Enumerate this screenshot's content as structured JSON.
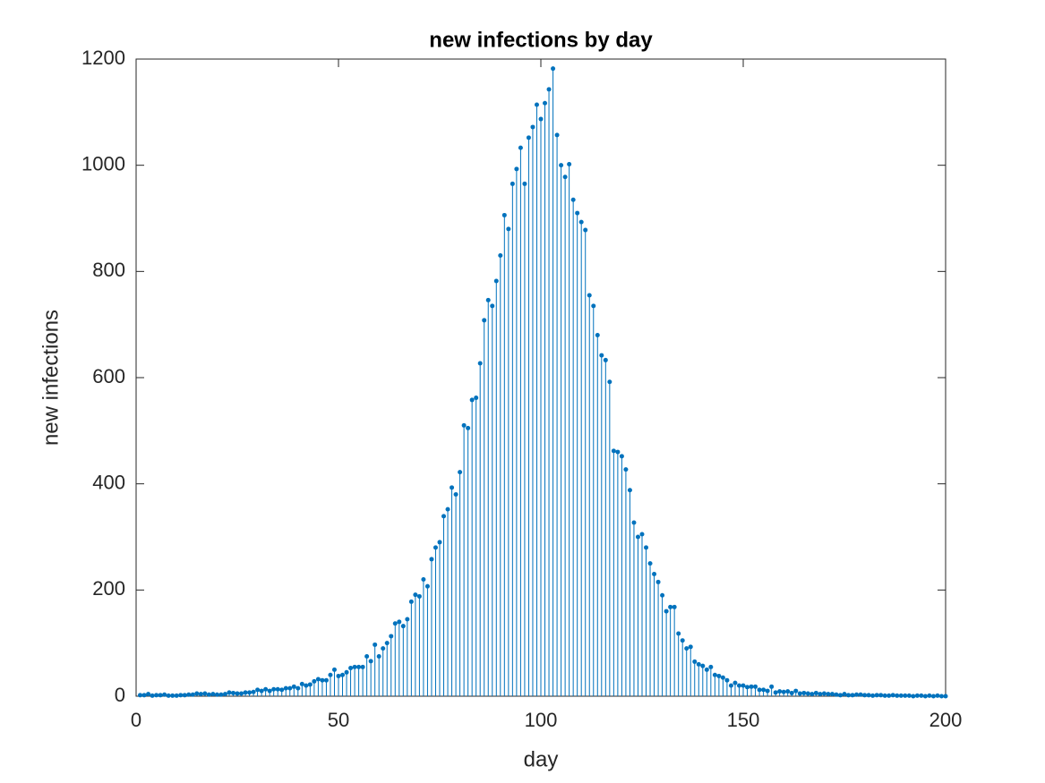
{
  "chart_data": {
    "type": "stem",
    "title": "new infections by day",
    "xlabel": "day",
    "ylabel": "new infections",
    "color": "#0072bd",
    "xlim": [
      0,
      200
    ],
    "xticks": [
      0,
      50,
      100,
      150,
      200
    ],
    "ylim": [
      0,
      1200
    ],
    "yticks": [
      0,
      200,
      400,
      600,
      800,
      1000,
      1200
    ],
    "x": [
      1,
      2,
      3,
      4,
      5,
      6,
      7,
      8,
      9,
      10,
      11,
      12,
      13,
      14,
      15,
      16,
      17,
      18,
      19,
      20,
      21,
      22,
      23,
      24,
      25,
      26,
      27,
      28,
      29,
      30,
      31,
      32,
      33,
      34,
      35,
      36,
      37,
      38,
      39,
      40,
      41,
      42,
      43,
      44,
      45,
      46,
      47,
      48,
      49,
      50,
      51,
      52,
      53,
      54,
      55,
      56,
      57,
      58,
      59,
      60,
      61,
      62,
      63,
      64,
      65,
      66,
      67,
      68,
      69,
      70,
      71,
      72,
      73,
      74,
      75,
      76,
      77,
      78,
      79,
      80,
      81,
      82,
      83,
      84,
      85,
      86,
      87,
      88,
      89,
      90,
      91,
      92,
      93,
      94,
      95,
      96,
      97,
      98,
      99,
      100,
      101,
      102,
      103,
      104,
      105,
      106,
      107,
      108,
      109,
      110,
      111,
      112,
      113,
      114,
      115,
      116,
      117,
      118,
      119,
      120,
      121,
      122,
      123,
      124,
      125,
      126,
      127,
      128,
      129,
      130,
      131,
      132,
      133,
      134,
      135,
      136,
      137,
      138,
      139,
      140,
      141,
      142,
      143,
      144,
      145,
      146,
      147,
      148,
      149,
      150,
      151,
      152,
      153,
      154,
      155,
      156,
      157,
      158,
      159,
      160,
      161,
      162,
      163,
      164,
      165,
      166,
      167,
      168,
      169,
      170,
      171,
      172,
      173,
      174,
      175,
      176,
      177,
      178,
      179,
      180,
      181,
      182,
      183,
      184,
      185,
      186,
      187,
      188,
      189,
      190,
      191,
      192,
      193,
      194,
      195,
      196,
      197,
      198,
      199,
      200
    ],
    "values": [
      2,
      2,
      4,
      1,
      2,
      2,
      3,
      1,
      1,
      1,
      2,
      2,
      3,
      3,
      5,
      4,
      5,
      3,
      4,
      3,
      3,
      4,
      7,
      6,
      5,
      5,
      7,
      7,
      8,
      12,
      10,
      13,
      10,
      13,
      13,
      12,
      15,
      15,
      18,
      15,
      23,
      20,
      22,
      28,
      32,
      30,
      30,
      40,
      50,
      38,
      40,
      45,
      53,
      55,
      55,
      55,
      75,
      66,
      97,
      75,
      90,
      100,
      113,
      137,
      140,
      132,
      145,
      178,
      191,
      188,
      220,
      207,
      258,
      280,
      290,
      339,
      352,
      393,
      380,
      422,
      510,
      505,
      558,
      562,
      627,
      708,
      746,
      735,
      782,
      830,
      906,
      880,
      965,
      993,
      1033,
      965,
      1052,
      1072,
      1114,
      1087,
      1117,
      1143,
      1182,
      1057,
      1000,
      978,
      1002,
      935,
      910,
      893,
      878,
      755,
      735,
      680,
      642,
      633,
      592,
      462,
      460,
      452,
      427,
      388,
      327,
      300,
      305,
      280,
      250,
      230,
      215,
      190,
      160,
      168,
      168,
      118,
      105,
      90,
      93,
      65,
      60,
      57,
      50,
      55,
      40,
      38,
      35,
      30,
      20,
      25,
      20,
      20,
      17,
      18,
      18,
      12,
      12,
      10,
      18,
      7,
      9,
      8,
      9,
      6,
      10,
      5,
      6,
      5,
      4,
      6,
      4,
      5,
      4,
      4,
      3,
      2,
      4,
      2,
      2,
      3,
      3,
      2,
      2,
      1,
      2,
      2,
      1,
      1,
      2,
      1,
      1,
      1,
      1,
      0,
      1,
      1,
      0,
      1,
      0,
      1,
      0,
      0
    ]
  }
}
